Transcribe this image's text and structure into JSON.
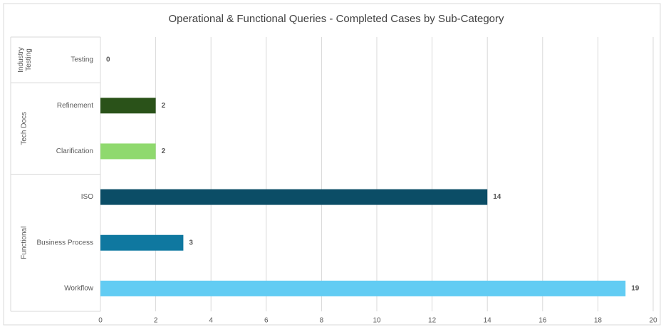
{
  "chart_data": {
    "type": "bar",
    "orientation": "horizontal",
    "title": "Operational & Functional Queries - Completed Cases by Sub-Category",
    "groups": [
      {
        "name": "Industry Testing",
        "categories": [
          "Testing"
        ],
        "values": [
          0
        ],
        "colors": [
          null
        ]
      },
      {
        "name": "Tech Docs",
        "categories": [
          "Refinement",
          "Clarification"
        ],
        "values": [
          2,
          2
        ],
        "colors": [
          "#2a5219",
          "#8fd96e"
        ]
      },
      {
        "name": "Functional",
        "categories": [
          "ISO",
          "Business Process",
          "Workflow"
        ],
        "values": [
          14,
          3,
          19
        ],
        "colors": [
          "#0b4d66",
          "#0f78a0",
          "#62ccf3"
        ]
      }
    ],
    "xlim": [
      0,
      20
    ],
    "xticks": [
      0,
      2,
      4,
      6,
      8,
      10,
      12,
      14,
      16,
      18,
      20
    ],
    "grid": true
  }
}
